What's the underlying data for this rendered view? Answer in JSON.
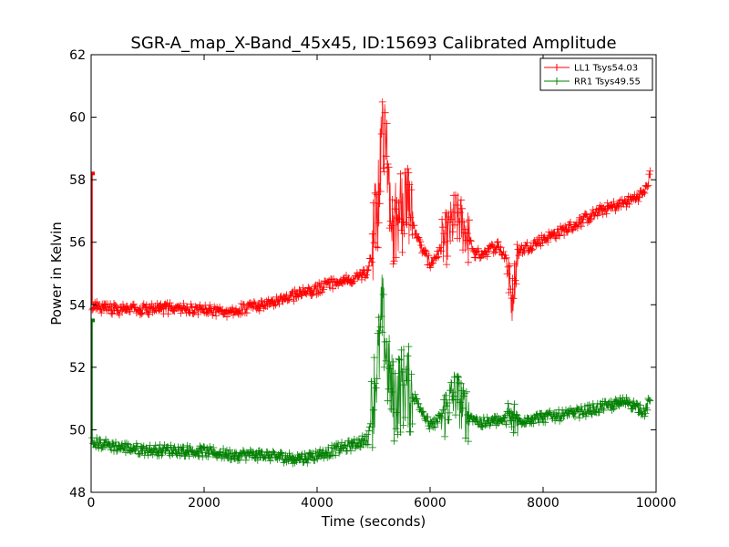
{
  "chart_data": {
    "type": "line",
    "title": "SGR-A_map_X-Band_45x45, ID:15693 Calibrated Amplitude",
    "xlabel": "Time (seconds)",
    "ylabel": "Power in Kelvin",
    "xlim": [
      0,
      10000
    ],
    "ylim": [
      48,
      62
    ],
    "xticks": [
      0,
      2000,
      4000,
      6000,
      8000,
      10000
    ],
    "yticks": [
      48,
      50,
      52,
      54,
      56,
      58,
      60,
      62
    ],
    "grid": false,
    "legend_position": "top-right",
    "marker": "+",
    "series": [
      {
        "name": "LL1 Tsys54.03",
        "color": "#ff0000",
        "points": [
          [
            0,
            58.2
          ],
          [
            0,
            54.0
          ],
          [
            200,
            53.9
          ],
          [
            500,
            53.85
          ],
          [
            1000,
            53.85
          ],
          [
            1500,
            53.9
          ],
          [
            2000,
            53.85
          ],
          [
            2300,
            53.75
          ],
          [
            2800,
            53.9
          ],
          [
            3200,
            54.1
          ],
          [
            3600,
            54.3
          ],
          [
            4000,
            54.5
          ],
          [
            4300,
            54.7
          ],
          [
            4600,
            54.8
          ],
          [
            4900,
            55.0
          ],
          [
            5100,
            57.5
          ],
          [
            5150,
            60.1
          ],
          [
            5250,
            58.5
          ],
          [
            5350,
            56.5
          ],
          [
            5500,
            57.0
          ],
          [
            5600,
            57.3
          ],
          [
            5800,
            56.0
          ],
          [
            6000,
            55.3
          ],
          [
            6200,
            55.8
          ],
          [
            6450,
            56.8
          ],
          [
            6600,
            56.5
          ],
          [
            6800,
            55.6
          ],
          [
            7000,
            55.7
          ],
          [
            7200,
            55.9
          ],
          [
            7350,
            55.5
          ],
          [
            7450,
            54.1
          ],
          [
            7550,
            55.7
          ],
          [
            8000,
            56.1
          ],
          [
            8500,
            56.5
          ],
          [
            9000,
            57.0
          ],
          [
            9500,
            57.3
          ],
          [
            9800,
            57.6
          ],
          [
            9900,
            58.2
          ]
        ]
      },
      {
        "name": "RR1 Tsys49.55",
        "color": "#008000",
        "points": [
          [
            0,
            53.5
          ],
          [
            0,
            49.6
          ],
          [
            200,
            49.55
          ],
          [
            500,
            49.45
          ],
          [
            1000,
            49.35
          ],
          [
            1500,
            49.35
          ],
          [
            2000,
            49.3
          ],
          [
            2500,
            49.2
          ],
          [
            3000,
            49.2
          ],
          [
            3500,
            49.1
          ],
          [
            3800,
            49.1
          ],
          [
            4200,
            49.3
          ],
          [
            4600,
            49.5
          ],
          [
            4900,
            49.7
          ],
          [
            5100,
            52.5
          ],
          [
            5150,
            53.8
          ],
          [
            5250,
            52.0
          ],
          [
            5350,
            50.9
          ],
          [
            5550,
            51.5
          ],
          [
            5800,
            50.8
          ],
          [
            6000,
            50.1
          ],
          [
            6200,
            50.4
          ],
          [
            6450,
            51.2
          ],
          [
            6600,
            50.6
          ],
          [
            6900,
            50.2
          ],
          [
            7200,
            50.3
          ],
          [
            7500,
            50.3
          ],
          [
            8000,
            50.4
          ],
          [
            8500,
            50.5
          ],
          [
            9000,
            50.7
          ],
          [
            9500,
            50.9
          ],
          [
            9800,
            50.6
          ],
          [
            9900,
            51.0
          ]
        ]
      }
    ]
  }
}
